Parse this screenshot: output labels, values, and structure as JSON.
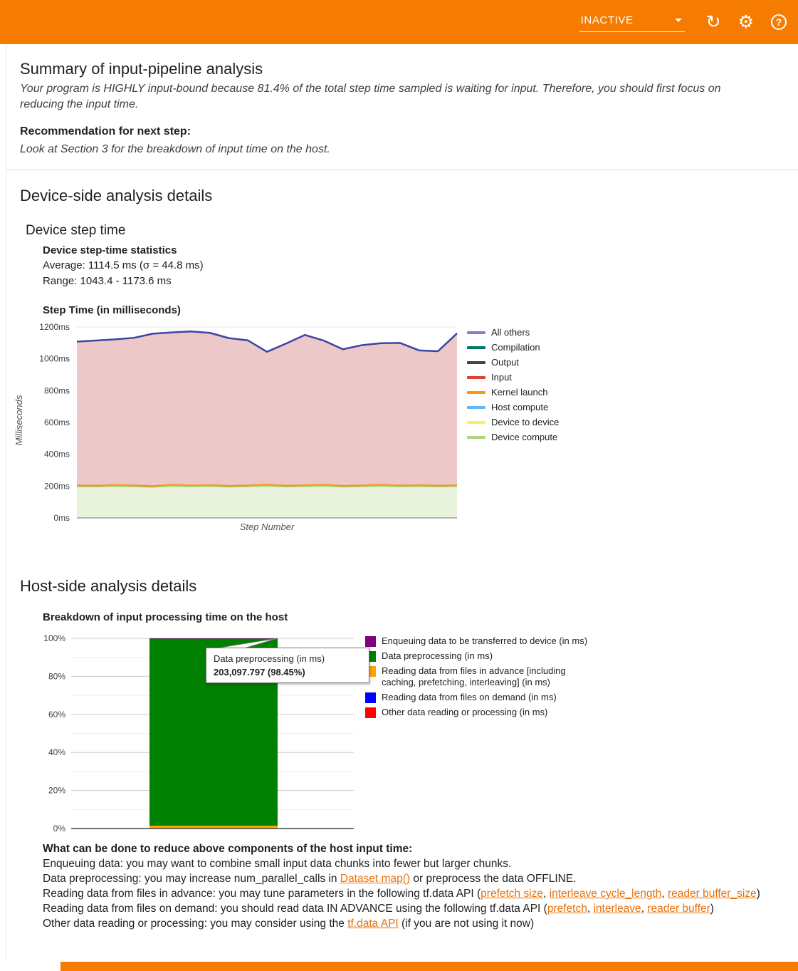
{
  "theme": {
    "header_color": "#F57C00",
    "link_color": "#E8710A"
  },
  "header": {
    "status_label": "INACTIVE",
    "icons": {
      "refresh": "↻",
      "settings": "⚙",
      "help": "?"
    }
  },
  "summary": {
    "title": "Summary of input-pipeline analysis",
    "body": "Your program is HIGHLY input-bound because 81.4% of the total step time sampled is waiting for input. Therefore, you should first focus on reducing the input time.",
    "recommendation_label": "Recommendation for next step:",
    "recommendation_body": "Look at Section 3 for the breakdown of input time on the host."
  },
  "device_section": {
    "title": "Device-side analysis details",
    "subtitle": "Device step time",
    "stats_title": "Device step-time statistics",
    "average": "Average: 1114.5 ms (σ = 44.8 ms)",
    "range": "Range: 1043.4 - 1173.6 ms",
    "chart_title": "Step Time (in milliseconds)",
    "ylabel": "Milliseconds",
    "xlabel": "Step Number"
  },
  "host_section": {
    "title": "Host-side analysis details",
    "chart_title": "Breakdown of input processing time on the host",
    "advice_title": "What can be done to reduce above components of the host input time:",
    "advice_lines": [
      [
        {
          "t": "Enqueuing data: you may want to combine small input data chunks into fewer but larger chunks."
        }
      ],
      [
        {
          "t": "Data preprocessing: you may increase num_parallel_calls in "
        },
        {
          "t": "Dataset map()",
          "link": true
        },
        {
          "t": " or preprocess the data OFFLINE."
        }
      ],
      [
        {
          "t": "Reading data from files in advance: you may tune parameters in the following tf.data API ("
        },
        {
          "t": "prefetch size",
          "link": true
        },
        {
          "t": ", "
        },
        {
          "t": "interleave cycle_length",
          "link": true
        },
        {
          "t": ", "
        },
        {
          "t": "reader buffer_size",
          "link": true
        },
        {
          "t": ")"
        }
      ],
      [
        {
          "t": "Reading data from files on demand: you should read data IN ADVANCE using the following tf.data API ("
        },
        {
          "t": "prefetch",
          "link": true
        },
        {
          "t": ", "
        },
        {
          "t": "interleave",
          "link": true
        },
        {
          "t": ", "
        },
        {
          "t": "reader buffer",
          "link": true
        },
        {
          "t": ")"
        }
      ],
      [
        {
          "t": "Other data reading or processing: you may consider using the "
        },
        {
          "t": "tf.data API",
          "link": true
        },
        {
          "t": " (if you are not using it now)"
        }
      ]
    ]
  },
  "chart_data": [
    {
      "type": "area",
      "title": "Step Time (in milliseconds)",
      "xlabel": "Step Number",
      "ylabel": "Milliseconds",
      "ylim": [
        0,
        1200
      ],
      "ytick_labels": [
        "0ms",
        "200ms",
        "400ms",
        "600ms",
        "800ms",
        "1000ms",
        "1200ms"
      ],
      "legend_position": "right",
      "grid": true,
      "legend": [
        {
          "label": "All others",
          "color": "#9575CD"
        },
        {
          "label": "Compilation",
          "color": "#00796B"
        },
        {
          "label": "Output",
          "color": "#37474F"
        },
        {
          "label": "Input",
          "color": "#DB4437"
        },
        {
          "label": "Kernel launch",
          "color": "#FF9800"
        },
        {
          "label": "Host compute",
          "color": "#64B5F6"
        },
        {
          "label": "Device to device",
          "color": "#FFEE58"
        },
        {
          "label": "Device compute",
          "color": "#AED581"
        }
      ],
      "stack_bands": [
        {
          "name": "Device compute",
          "line_color": "#9CCC65",
          "fill_color": "#E9F2DC",
          "top": [
            200,
            198,
            202,
            199,
            196,
            203,
            200,
            202,
            197,
            200,
            204,
            198,
            201,
            203,
            197,
            200,
            203,
            199,
            201,
            198,
            201
          ]
        },
        {
          "name": "Kernel launch",
          "line_color": "#FB8C00",
          "fill_color": "#FFA726",
          "top": [
            209,
            207,
            211,
            208,
            205,
            212,
            209,
            211,
            206,
            209,
            213,
            207,
            210,
            212,
            206,
            209,
            212,
            208,
            210,
            207,
            210
          ]
        },
        {
          "name": "Input",
          "line_color": "#3A45A4",
          "fill_color": "#ECC8C8",
          "top": [
            1108,
            1115,
            1122,
            1132,
            1158,
            1166,
            1172,
            1163,
            1130,
            1116,
            1044,
            1096,
            1150,
            1114,
            1060,
            1086,
            1098,
            1100,
            1053,
            1048,
            1160
          ]
        }
      ],
      "stats": {
        "average_ms": 1114.5,
        "sigma_ms": 44.8,
        "range_ms": [
          1043.4,
          1173.6
        ]
      }
    },
    {
      "type": "bar",
      "title": "Breakdown of input processing time on the host",
      "ylim": [
        0,
        100
      ],
      "ytick_labels": [
        "0%",
        "20%",
        "40%",
        "60%",
        "80%",
        "100%"
      ],
      "grid": true,
      "legend_position": "right",
      "stack": [
        {
          "name": "Other data reading or processing (in ms)",
          "color": "#FF0000",
          "percent": 0.03
        },
        {
          "name": "Reading data from files on demand (in ms)",
          "color": "#0000FF",
          "percent": 0.04
        },
        {
          "name": "Reading data from files in advance [including caching, prefetching, interleaving] (in ms)",
          "color": "#FFA500",
          "percent": 1.43
        },
        {
          "name": "Data preprocessing (in ms)",
          "color": "#008000",
          "percent": 98.45,
          "value_ms": "203,097.797"
        },
        {
          "name": "Enqueuing data to be transferred to device (in ms)",
          "color": "#800080",
          "percent": 0.05
        }
      ],
      "legend": [
        {
          "label": "Enqueuing data to be transferred to device (in ms)",
          "color": "#800080"
        },
        {
          "label": "Data preprocessing (in ms)",
          "color": "#008000"
        },
        {
          "label": "Reading data from files in advance [including caching, prefetching, interleaving] (in ms)",
          "color": "#FFA500"
        },
        {
          "label": "Reading data from files on demand (in ms)",
          "color": "#0000FF"
        },
        {
          "label": "Other data reading or processing (in ms)",
          "color": "#FF0000"
        }
      ],
      "tooltip": {
        "line1": "Data preprocessing (in ms)",
        "line2": "203,097.797 (98.45%)"
      }
    }
  ]
}
